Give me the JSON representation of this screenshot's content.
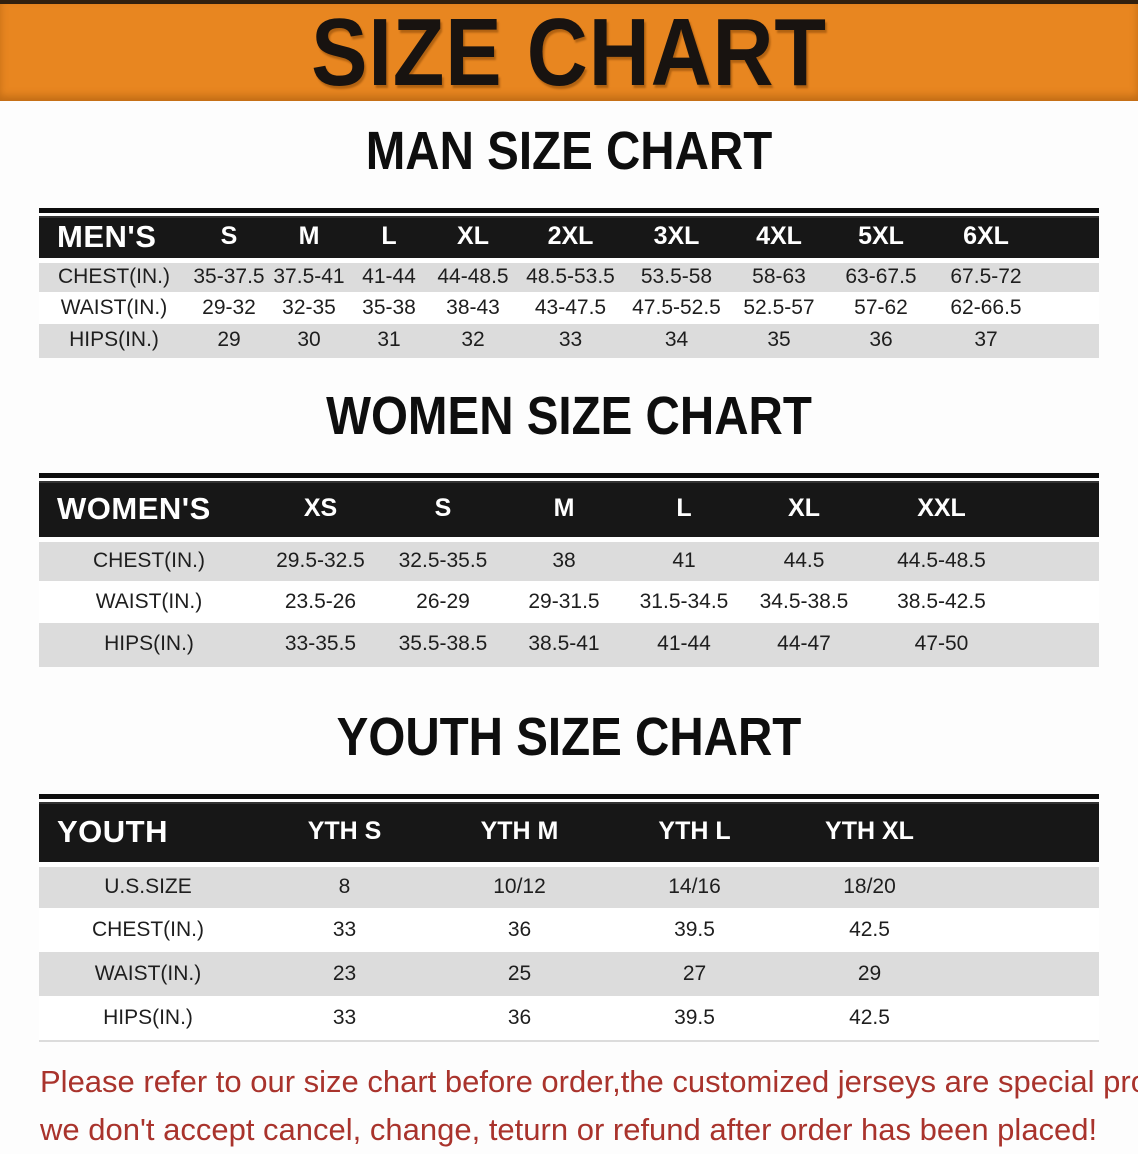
{
  "banner": {
    "title": "SIZE CHART"
  },
  "colors": {
    "banner_orange": "#e88620",
    "table_header_black": "#171717",
    "stripe_gray": "#dcdcdc",
    "notice_red": "#a9332c"
  },
  "sections": [
    {
      "id": "men",
      "heading": "MAN SIZE CHART",
      "table": {
        "header_label": "MEN'S",
        "columns": [
          "S",
          "M",
          "L",
          "XL",
          "2XL",
          "3XL",
          "4XL",
          "5XL",
          "6XL"
        ],
        "rows": [
          {
            "label": "CHEST(IN.)",
            "values": [
              "35-37.5",
              "37.5-41",
              "41-44",
              "44-48.5",
              "48.5-53.5",
              "53.5-58",
              "58-63",
              "63-67.5",
              "67.5-72"
            ]
          },
          {
            "label": "WAIST(IN.)",
            "values": [
              "29-32",
              "32-35",
              "35-38",
              "38-43",
              "43-47.5",
              "47.5-52.5",
              "52.5-57",
              "57-62",
              "62-66.5"
            ]
          },
          {
            "label": "HIPS(IN.)",
            "values": [
              "29",
              "30",
              "31",
              "32",
              "33",
              "34",
              "35",
              "36",
              "37"
            ]
          }
        ]
      }
    },
    {
      "id": "women",
      "heading": "WOMEN SIZE CHART",
      "table": {
        "header_label": "WOMEN'S",
        "columns": [
          "XS",
          "S",
          "M",
          "L",
          "XL",
          "XXL"
        ],
        "rows": [
          {
            "label": "CHEST(IN.)",
            "values": [
              "29.5-32.5",
              "32.5-35.5",
              "38",
              "41",
              "44.5",
              "44.5-48.5"
            ]
          },
          {
            "label": "WAIST(IN.)",
            "values": [
              "23.5-26",
              "26-29",
              "29-31.5",
              "31.5-34.5",
              "34.5-38.5",
              "38.5-42.5"
            ]
          },
          {
            "label": "HIPS(IN.)",
            "values": [
              "33-35.5",
              "35.5-38.5",
              "38.5-41",
              "41-44",
              "44-47",
              "47-50"
            ]
          }
        ]
      }
    },
    {
      "id": "youth",
      "heading": "YOUTH SIZE CHART",
      "table": {
        "header_label": "YOUTH",
        "columns": [
          "YTH S",
          "YTH M",
          "YTH L",
          "YTH XL"
        ],
        "rows": [
          {
            "label": "U.S.SIZE",
            "values": [
              "8",
              "10/12",
              "14/16",
              "18/20"
            ]
          },
          {
            "label": "CHEST(IN.)",
            "values": [
              "33",
              "36",
              "39.5",
              "42.5"
            ]
          },
          {
            "label": "WAIST(IN.)",
            "values": [
              "23",
              "25",
              "27",
              "29"
            ]
          },
          {
            "label": "HIPS(IN.)",
            "values": [
              "33",
              "36",
              "39.5",
              "42.5"
            ]
          }
        ]
      }
    }
  ],
  "footer": {
    "line1": "Please refer to our size chart before order,the customized jerseys are special products,",
    "line2": "we don't accept cancel, change, teturn or refund after order has been placed!"
  }
}
